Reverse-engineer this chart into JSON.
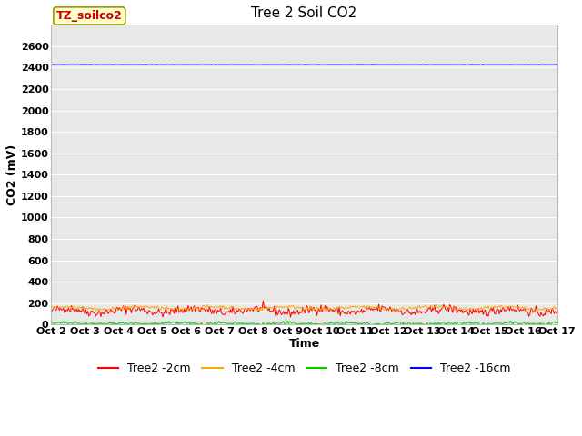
{
  "title": "Tree 2 Soil CO2",
  "xlabel": "Time",
  "ylabel": "CO2 (mV)",
  "annotation": "TZ_soilco2",
  "ylim": [
    0,
    2800
  ],
  "yticks": [
    0,
    200,
    400,
    600,
    800,
    1000,
    1200,
    1400,
    1600,
    1800,
    2000,
    2200,
    2400,
    2600
  ],
  "x_labels": [
    "Oct 2",
    "Oct 3",
    "Oct 4",
    "Oct 5",
    "Oct 6",
    "Oct 7",
    "Oct 8",
    "Oct 9",
    "Oct 10",
    "Oct 11",
    "Oct 12",
    "Oct 13",
    "Oct 14",
    "Oct 15",
    "Oct 16",
    "Oct 17"
  ],
  "num_points": 500,
  "series_order": [
    "Tree2 -2cm",
    "Tree2 -4cm",
    "Tree2 -8cm",
    "Tree2 -16cm"
  ],
  "series": {
    "Tree2 -2cm": {
      "color": "#ff0000",
      "mean": 130,
      "amplitude": 20,
      "noise": 20,
      "freq": 8.0
    },
    "Tree2 -4cm": {
      "color": "#ffa500",
      "mean": 155,
      "amplitude": 12,
      "noise": 8,
      "freq": 7.0
    },
    "Tree2 -8cm": {
      "color": "#00cc00",
      "mean": 10,
      "amplitude": 5,
      "noise": 8,
      "freq": 9.0
    },
    "Tree2 -16cm": {
      "color": "#0000ff",
      "mean": 2430,
      "amplitude": 0,
      "noise": 1,
      "freq": 0.5
    }
  },
  "fig_bg_color": "#ffffff",
  "plot_bg_color": "#e8e8e8",
  "grid_color": "#ffffff",
  "title_fontsize": 11,
  "axis_label_fontsize": 9,
  "tick_fontsize": 8,
  "legend_fontsize": 9,
  "annotation_fontsize": 9
}
